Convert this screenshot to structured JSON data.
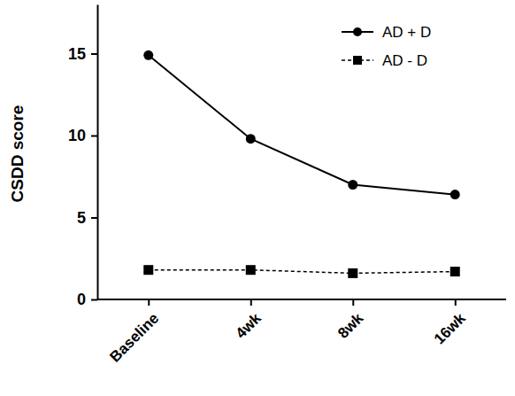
{
  "chart_data": {
    "type": "line",
    "y_label": "CSDD score",
    "categories": [
      "Baseline",
      "4wk",
      "8wk",
      "16wk"
    ],
    "series": [
      {
        "name": "AD + D",
        "color": "#000000",
        "marker": "circle",
        "line_style": "solid",
        "values": [
          14.9,
          9.8,
          7.0,
          6.4
        ]
      },
      {
        "name": "AD - D",
        "color": "#000000",
        "marker": "square",
        "line_style": "dashed",
        "values": [
          1.8,
          1.8,
          1.6,
          1.7
        ]
      }
    ],
    "ylim": [
      0,
      18
    ],
    "yticks": [
      0,
      5,
      10,
      15
    ],
    "grid": false,
    "legend": "top-right"
  }
}
